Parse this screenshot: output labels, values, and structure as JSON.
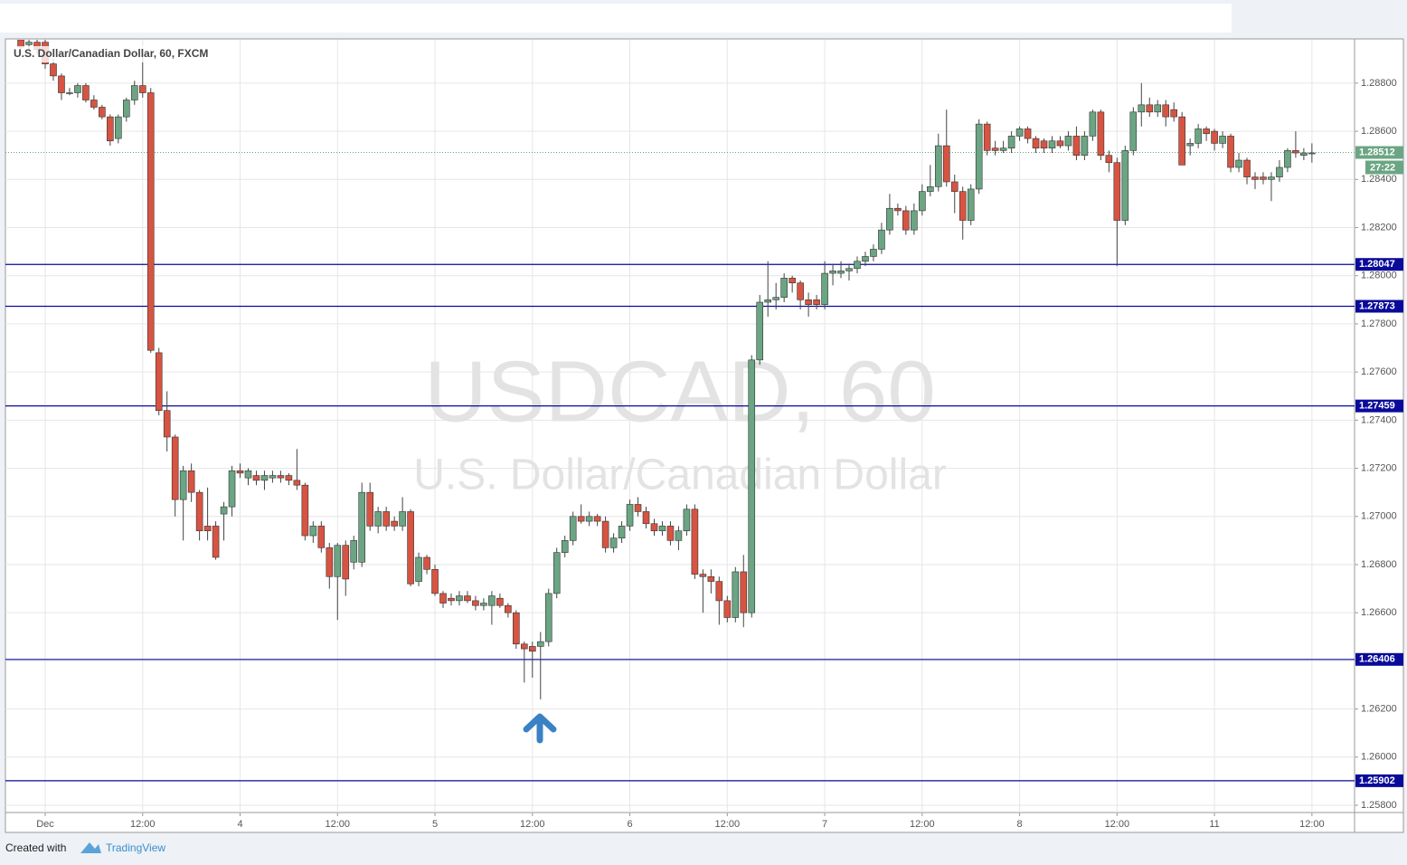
{
  "chart_data": {
    "type": "candlestick",
    "title": "U.S. Dollar/Canadian Dollar, 60, FXCM",
    "watermark": "USDCAD, 60",
    "watermark_subtitle": "U.S. Dollar/Canadian Dollar",
    "up_color": "#6ba583",
    "down_color": "#d75442",
    "level_color": "#0a0a9a",
    "grid": true,
    "xlim": [
      -4.9,
      161.25
    ],
    "ylim": [
      1.2577,
      1.2898
    ],
    "xticks": [
      {
        "value": 0,
        "label": "Dec"
      },
      {
        "value": 12,
        "label": "12:00"
      },
      {
        "value": 24,
        "label": "4"
      },
      {
        "value": 36,
        "label": "12:00"
      },
      {
        "value": 48,
        "label": "5"
      },
      {
        "value": 60,
        "label": "12:00"
      },
      {
        "value": 72,
        "label": "6"
      },
      {
        "value": 84,
        "label": "12:00"
      },
      {
        "value": 96,
        "label": "7"
      },
      {
        "value": 108,
        "label": "12:00"
      },
      {
        "value": 120,
        "label": "8"
      },
      {
        "value": 132,
        "label": "12:00"
      },
      {
        "value": 144,
        "label": "11"
      },
      {
        "value": 156,
        "label": "12:00"
      }
    ],
    "yticks": [
      {
        "value": 1.258,
        "label": "1.25800"
      },
      {
        "value": 1.26,
        "label": "1.26000"
      },
      {
        "value": 1.262,
        "label": "1.26200"
      },
      {
        "value": 1.264,
        "label": "1.26400"
      },
      {
        "value": 1.266,
        "label": "1.26600"
      },
      {
        "value": 1.268,
        "label": "1.26800"
      },
      {
        "value": 1.27,
        "label": "1.27000"
      },
      {
        "value": 1.272,
        "label": "1.27200"
      },
      {
        "value": 1.274,
        "label": "1.27400"
      },
      {
        "value": 1.276,
        "label": "1.27600"
      },
      {
        "value": 1.278,
        "label": "1.27800"
      },
      {
        "value": 1.28,
        "label": "1.28000"
      },
      {
        "value": 1.282,
        "label": "1.28200"
      },
      {
        "value": 1.284,
        "label": "1.28400"
      },
      {
        "value": 1.286,
        "label": "1.28600"
      },
      {
        "value": 1.288,
        "label": "1.28800"
      }
    ],
    "levels": [
      1.28047,
      1.27873,
      1.27459,
      1.26406,
      1.25902
    ],
    "last_price": 1.28512,
    "countdown": "27:22",
    "x": [
      -3,
      -2,
      -1,
      0,
      1,
      2,
      3,
      4,
      5,
      6,
      7,
      8,
      9,
      10,
      11,
      12,
      13,
      14,
      15,
      16,
      17,
      18,
      19,
      20,
      21,
      22,
      23,
      24,
      25,
      26,
      27,
      28,
      29,
      30,
      31,
      32,
      33,
      34,
      35,
      36,
      37,
      38,
      39,
      40,
      41,
      42,
      43,
      44,
      45,
      46,
      47,
      48,
      49,
      50,
      51,
      52,
      53,
      54,
      55,
      56,
      57,
      58,
      59,
      60,
      61,
      62,
      63,
      64,
      65,
      66,
      67,
      68,
      69,
      70,
      71,
      72,
      73,
      74,
      75,
      76,
      77,
      78,
      79,
      80,
      81,
      82,
      83,
      84,
      85,
      86,
      87,
      88,
      89,
      90,
      91,
      92,
      93,
      94,
      95,
      96,
      97,
      98,
      99,
      100,
      101,
      102,
      103,
      104,
      105,
      106,
      107,
      108,
      109,
      110,
      111,
      112,
      113,
      114,
      115,
      116,
      117,
      118,
      119,
      120,
      121,
      122,
      123,
      124,
      125,
      126,
      127,
      128,
      129,
      130,
      131,
      132,
      133,
      134,
      135,
      136,
      137,
      138,
      139,
      140,
      141,
      142,
      143,
      144,
      145,
      146,
      147,
      148,
      149,
      150,
      151,
      152,
      153,
      154,
      155,
      156
    ],
    "ohlc": [
      [
        1.2898,
        1.29,
        1.2894,
        1.2895
      ],
      [
        1.2896,
        1.2898,
        1.2894,
        1.2897
      ],
      [
        1.2897,
        1.2899,
        1.2892,
        1.2894
      ],
      [
        1.2897,
        1.2899,
        1.2886,
        1.2888
      ],
      [
        1.2888,
        1.289,
        1.2881,
        1.2883
      ],
      [
        1.2883,
        1.2884,
        1.2873,
        1.2876
      ],
      [
        1.2876,
        1.2878,
        1.2875,
        1.2876
      ],
      [
        1.2876,
        1.288,
        1.2874,
        1.2879
      ],
      [
        1.2879,
        1.288,
        1.2872,
        1.2873
      ],
      [
        1.2873,
        1.2875,
        1.2869,
        1.287
      ],
      [
        1.287,
        1.2871,
        1.2865,
        1.2866
      ],
      [
        1.2866,
        1.2867,
        1.2854,
        1.2856
      ],
      [
        1.2857,
        1.2867,
        1.2855,
        1.2866
      ],
      [
        1.2866,
        1.2874,
        1.2864,
        1.2873
      ],
      [
        1.2873,
        1.2881,
        1.2871,
        1.2879
      ],
      [
        1.2879,
        1.2891,
        1.2874,
        1.2876
      ],
      [
        1.2876,
        1.2878,
        1.2768,
        1.2769
      ],
      [
        1.2768,
        1.277,
        1.2742,
        1.2744
      ],
      [
        1.2744,
        1.2752,
        1.2727,
        1.2733
      ],
      [
        1.2733,
        1.2734,
        1.27,
        1.2707
      ],
      [
        1.2707,
        1.2721,
        1.269,
        1.2719
      ],
      [
        1.2719,
        1.2722,
        1.2706,
        1.271
      ],
      [
        1.271,
        1.2711,
        1.269,
        1.2694
      ],
      [
        1.2696,
        1.2712,
        1.269,
        1.2694
      ],
      [
        1.2696,
        1.2698,
        1.2682,
        1.2683
      ],
      [
        1.2701,
        1.2706,
        1.269,
        1.2704
      ],
      [
        1.2704,
        1.2721,
        1.27,
        1.2719
      ],
      [
        1.2719,
        1.2722,
        1.2716,
        1.2718
      ],
      [
        1.2716,
        1.272,
        1.2713,
        1.2719
      ],
      [
        1.2717,
        1.2719,
        1.2713,
        1.2715
      ],
      [
        1.2715,
        1.2719,
        1.2711,
        1.2717
      ],
      [
        1.2716,
        1.2719,
        1.2714,
        1.2717
      ],
      [
        1.2717,
        1.2719,
        1.2714,
        1.2716
      ],
      [
        1.2717,
        1.2718,
        1.2713,
        1.2715
      ],
      [
        1.2715,
        1.2728,
        1.2711,
        1.2713
      ],
      [
        1.2713,
        1.2714,
        1.269,
        1.2692
      ],
      [
        1.2692,
        1.2698,
        1.2689,
        1.2696
      ],
      [
        1.2696,
        1.2698,
        1.2685,
        1.2687
      ],
      [
        1.2687,
        1.2689,
        1.267,
        1.2675
      ],
      [
        1.2675,
        1.2689,
        1.2657,
        1.2688
      ],
      [
        1.2688,
        1.269,
        1.2667,
        1.2674
      ],
      [
        1.2681,
        1.2692,
        1.2678,
        1.269
      ],
      [
        1.2681,
        1.2714,
        1.2679,
        1.271
      ],
      [
        1.271,
        1.2714,
        1.2694,
        1.2696
      ],
      [
        1.2696,
        1.2704,
        1.2693,
        1.2702
      ],
      [
        1.2702,
        1.2704,
        1.2694,
        1.2696
      ],
      [
        1.2698,
        1.27,
        1.2694,
        1.2696
      ],
      [
        1.2696,
        1.2708,
        1.2694,
        1.2702
      ],
      [
        1.2702,
        1.2703,
        1.2671,
        1.2672
      ],
      [
        1.2673,
        1.2685,
        1.2671,
        1.2683
      ],
      [
        1.2683,
        1.2684,
        1.2676,
        1.2678
      ],
      [
        1.2678,
        1.268,
        1.2667,
        1.2668
      ],
      [
        1.2668,
        1.2669,
        1.2662,
        1.2664
      ],
      [
        1.2666,
        1.2668,
        1.2663,
        1.2665
      ],
      [
        1.2665,
        1.2669,
        1.2663,
        1.2667
      ],
      [
        1.2667,
        1.2669,
        1.2664,
        1.2665
      ],
      [
        1.2665,
        1.2667,
        1.2661,
        1.2663
      ],
      [
        1.2663,
        1.2666,
        1.2661,
        1.2664
      ],
      [
        1.2663,
        1.2669,
        1.2655,
        1.2667
      ],
      [
        1.2666,
        1.2668,
        1.2662,
        1.2663
      ],
      [
        1.2663,
        1.2664,
        1.2658,
        1.266
      ],
      [
        1.266,
        1.2661,
        1.2645,
        1.2647
      ],
      [
        1.2647,
        1.2648,
        1.2631,
        1.2645
      ],
      [
        1.2646,
        1.2648,
        1.2633,
        1.2644
      ],
      [
        1.2646,
        1.2652,
        1.2624,
        1.2648
      ],
      [
        1.2648,
        1.267,
        1.2646,
        1.2668
      ],
      [
        1.2668,
        1.2687,
        1.2666,
        1.2685
      ],
      [
        1.2685,
        1.2692,
        1.2683,
        1.269
      ],
      [
        1.269,
        1.2702,
        1.2688,
        1.27
      ],
      [
        1.27,
        1.2705,
        1.2697,
        1.2698
      ],
      [
        1.2698,
        1.2702,
        1.2696,
        1.27
      ],
      [
        1.27,
        1.2701,
        1.2696,
        1.2698
      ],
      [
        1.2698,
        1.27,
        1.2685,
        1.2687
      ],
      [
        1.2687,
        1.2693,
        1.2685,
        1.2691
      ],
      [
        1.2691,
        1.2698,
        1.2689,
        1.2696
      ],
      [
        1.2696,
        1.2707,
        1.2694,
        1.2705
      ],
      [
        1.2705,
        1.2708,
        1.27,
        1.2702
      ],
      [
        1.2702,
        1.2704,
        1.2695,
        1.2697
      ],
      [
        1.2697,
        1.2699,
        1.2692,
        1.2694
      ],
      [
        1.2694,
        1.2698,
        1.2692,
        1.2696
      ],
      [
        1.2696,
        1.2698,
        1.2688,
        1.269
      ],
      [
        1.269,
        1.2696,
        1.2686,
        1.2694
      ],
      [
        1.2694,
        1.2705,
        1.2692,
        1.2703
      ],
      [
        1.2703,
        1.2705,
        1.2674,
        1.2676
      ],
      [
        1.2676,
        1.2678,
        1.266,
        1.2675
      ],
      [
        1.2675,
        1.2678,
        1.2668,
        1.2673
      ],
      [
        1.2673,
        1.2675,
        1.2655,
        1.2665
      ],
      [
        1.2665,
        1.2667,
        1.2656,
        1.2658
      ],
      [
        1.2658,
        1.2679,
        1.2656,
        1.2677
      ],
      [
        1.2677,
        1.2684,
        1.2654,
        1.266
      ],
      [
        1.266,
        1.2767,
        1.2658,
        1.2765
      ],
      [
        1.2765,
        1.2792,
        1.2763,
        1.2789
      ],
      [
        1.2789,
        1.2806,
        1.2783,
        1.279
      ],
      [
        1.279,
        1.2797,
        1.2786,
        1.2791
      ],
      [
        1.2791,
        1.2801,
        1.2789,
        1.2799
      ],
      [
        1.2799,
        1.28,
        1.2793,
        1.2797
      ],
      [
        1.2797,
        1.2798,
        1.2786,
        1.279
      ],
      [
        1.279,
        1.2793,
        1.2783,
        1.2788
      ],
      [
        1.279,
        1.2792,
        1.2786,
        1.2788
      ],
      [
        1.2788,
        1.2806,
        1.2786,
        1.2801
      ],
      [
        1.2801,
        1.2805,
        1.2796,
        1.2802
      ],
      [
        1.2801,
        1.2806,
        1.2799,
        1.2802
      ],
      [
        1.2802,
        1.2805,
        1.2798,
        1.2803
      ],
      [
        1.2803,
        1.2808,
        1.2801,
        1.2806
      ],
      [
        1.2806,
        1.281,
        1.2804,
        1.2808
      ],
      [
        1.2808,
        1.2813,
        1.2806,
        1.2811
      ],
      [
        1.2811,
        1.2822,
        1.2809,
        1.2819
      ],
      [
        1.2819,
        1.2834,
        1.2817,
        1.2828
      ],
      [
        1.2828,
        1.283,
        1.2825,
        1.2827
      ],
      [
        1.2827,
        1.2829,
        1.2817,
        1.2819
      ],
      [
        1.2819,
        1.283,
        1.2817,
        1.2827
      ],
      [
        1.2827,
        1.2838,
        1.2825,
        1.2835
      ],
      [
        1.2835,
        1.2846,
        1.2833,
        1.2837
      ],
      [
        1.2837,
        1.2859,
        1.2835,
        1.2854
      ],
      [
        1.2854,
        1.2869,
        1.2837,
        1.2839
      ],
      [
        1.2839,
        1.2842,
        1.2826,
        1.2835
      ],
      [
        1.2835,
        1.2837,
        1.2815,
        1.2823
      ],
      [
        1.2823,
        1.2838,
        1.2821,
        1.2836
      ],
      [
        1.2836,
        1.2865,
        1.2834,
        1.2863
      ],
      [
        1.2863,
        1.2864,
        1.285,
        1.2852
      ],
      [
        1.2853,
        1.2856,
        1.285,
        1.2852
      ],
      [
        1.2852,
        1.2856,
        1.2851,
        1.2853
      ],
      [
        1.2853,
        1.286,
        1.2851,
        1.2858
      ],
      [
        1.2858,
        1.2862,
        1.2856,
        1.2861
      ],
      [
        1.2861,
        1.2862,
        1.2855,
        1.2857
      ],
      [
        1.2857,
        1.2858,
        1.2851,
        1.2853
      ],
      [
        1.2856,
        1.2857,
        1.2851,
        1.2853
      ],
      [
        1.2853,
        1.2858,
        1.2851,
        1.2856
      ],
      [
        1.2856,
        1.2858,
        1.2853,
        1.2854
      ],
      [
        1.2854,
        1.286,
        1.2852,
        1.2858
      ],
      [
        1.2858,
        1.2862,
        1.2848,
        1.285
      ],
      [
        1.285,
        1.286,
        1.2848,
        1.2858
      ],
      [
        1.2858,
        1.2869,
        1.2856,
        1.2868
      ],
      [
        1.2868,
        1.2869,
        1.2848,
        1.285
      ],
      [
        1.285,
        1.2852,
        1.2843,
        1.2847
      ],
      [
        1.2847,
        1.2849,
        1.2804,
        1.2823
      ],
      [
        1.2823,
        1.2854,
        1.2821,
        1.2852
      ],
      [
        1.2852,
        1.287,
        1.285,
        1.2868
      ],
      [
        1.2868,
        1.288,
        1.2862,
        1.2871
      ],
      [
        1.2871,
        1.2874,
        1.2866,
        1.2868
      ],
      [
        1.2868,
        1.2873,
        1.2866,
        1.2871
      ],
      [
        1.2871,
        1.2873,
        1.2862,
        1.2866
      ],
      [
        1.2869,
        1.2872,
        1.2864,
        1.2866
      ],
      [
        1.2866,
        1.2868,
        1.2846,
        1.2846
      ],
      [
        1.2854,
        1.2857,
        1.285,
        1.2855
      ],
      [
        1.2855,
        1.2863,
        1.2853,
        1.2861
      ],
      [
        1.2861,
        1.2862,
        1.2856,
        1.2859
      ],
      [
        1.286,
        1.2861,
        1.2852,
        1.2855
      ],
      [
        1.2855,
        1.286,
        1.2853,
        1.2858
      ],
      [
        1.2858,
        1.2859,
        1.2843,
        1.2845
      ],
      [
        1.2845,
        1.2851,
        1.2843,
        1.2848
      ],
      [
        1.2848,
        1.2849,
        1.2838,
        1.2841
      ],
      [
        1.2841,
        1.2843,
        1.2836,
        1.284
      ],
      [
        1.2841,
        1.2843,
        1.2838,
        1.284
      ],
      [
        1.284,
        1.2843,
        1.2831,
        1.2841
      ],
      [
        1.2841,
        1.2848,
        1.2839,
        1.2845
      ],
      [
        1.2845,
        1.2853,
        1.2843,
        1.2852
      ],
      [
        1.2852,
        1.286,
        1.2849,
        1.2851
      ],
      [
        1.285,
        1.2853,
        1.2848,
        1.2851
      ],
      [
        1.2851,
        1.2855,
        1.2847,
        1.2851
      ]
    ]
  },
  "footer": {
    "text": "Created with",
    "brand": "TradingView"
  }
}
